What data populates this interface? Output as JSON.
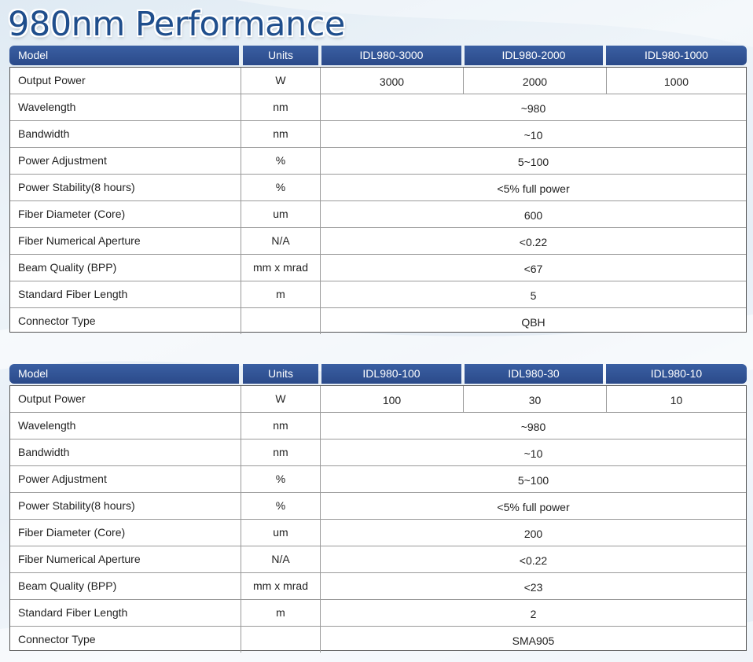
{
  "title": "980nm Performance",
  "colors": {
    "header_bg": "#2b4a8a",
    "title": "#1f4e8c"
  },
  "tables": [
    {
      "headers": [
        "Model",
        "Units",
        "IDL980-3000",
        "IDL980-2000",
        "IDL980-1000"
      ],
      "rows": [
        {
          "label": "Output Power",
          "unit": "W",
          "values": [
            "3000",
            "2000",
            "1000"
          ]
        },
        {
          "label": "Wavelength",
          "unit": "nm",
          "value": "~980"
        },
        {
          "label": "Bandwidth",
          "unit": "nm",
          "value": "~10"
        },
        {
          "label": "Power Adjustment",
          "unit": "%",
          "value": "5~100"
        },
        {
          "label": "Power Stability(8 hours)",
          "unit": "%",
          "value": "<5% full power"
        },
        {
          "label": "Fiber Diameter (Core)",
          "unit": "um",
          "value": "600"
        },
        {
          "label": "Fiber Numerical Aperture",
          "unit": "N/A",
          "value": "<0.22"
        },
        {
          "label": "Beam Quality (BPP)",
          "unit": "mm x mrad",
          "value": "<67"
        },
        {
          "label": "Standard Fiber Length",
          "unit": "m",
          "value": "5"
        },
        {
          "label": "Connector Type",
          "unit": "",
          "value": "QBH"
        }
      ]
    },
    {
      "headers": [
        "Model",
        "Units",
        "IDL980-100",
        "IDL980-30",
        "IDL980-10"
      ],
      "rows": [
        {
          "label": "Output Power",
          "unit": "W",
          "values": [
            "100",
            "30",
            "10"
          ]
        },
        {
          "label": "Wavelength",
          "unit": "nm",
          "value": "~980"
        },
        {
          "label": "Bandwidth",
          "unit": "nm",
          "value": "~10"
        },
        {
          "label": "Power Adjustment",
          "unit": "%",
          "value": "5~100"
        },
        {
          "label": "Power Stability(8 hours)",
          "unit": "%",
          "value": "<5% full power"
        },
        {
          "label": "Fiber Diameter (Core)",
          "unit": "um",
          "value": "200"
        },
        {
          "label": "Fiber Numerical Aperture",
          "unit": "N/A",
          "value": "<0.22"
        },
        {
          "label": "Beam Quality (BPP)",
          "unit": "mm x mrad",
          "value": "<23"
        },
        {
          "label": "Standard Fiber Length",
          "unit": "m",
          "value": "2"
        },
        {
          "label": "Connector Type",
          "unit": "",
          "value": "SMA905"
        }
      ]
    }
  ]
}
